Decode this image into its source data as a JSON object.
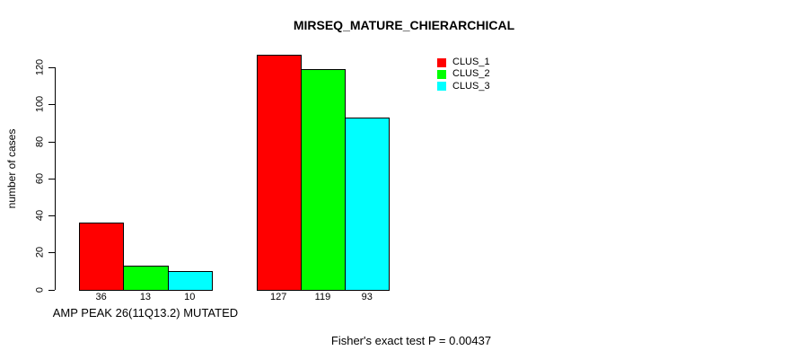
{
  "chart_data": {
    "type": "bar",
    "title": "MIRSEQ_MATURE_CHIERARCHICAL",
    "ylabel": "number of cases",
    "xlabel": "AMP PEAK 26(11Q13.2) MUTATED",
    "annotation": "Fisher's exact test P = 0.00437",
    "ylim": [
      0,
      130
    ],
    "yticks": [
      0,
      20,
      40,
      60,
      80,
      100,
      120
    ],
    "grid": false,
    "legend_position": "top-right",
    "series_names": [
      "CLUS_1",
      "CLUS_2",
      "CLUS_3"
    ],
    "colors": [
      "#FF0000",
      "#00FF00",
      "#00FFFF"
    ],
    "groups": [
      {
        "label": "AMP PEAK 26(11Q13.2) MUTATED",
        "values": [
          36,
          13,
          10
        ]
      },
      {
        "label": "",
        "values": [
          127,
          119,
          93
        ]
      }
    ],
    "legend": [
      {
        "label": "CLUS_1",
        "color": "#FF0000"
      },
      {
        "label": "CLUS_2",
        "color": "#00FF00"
      },
      {
        "label": "CLUS_3",
        "color": "#00FFFF"
      }
    ]
  }
}
